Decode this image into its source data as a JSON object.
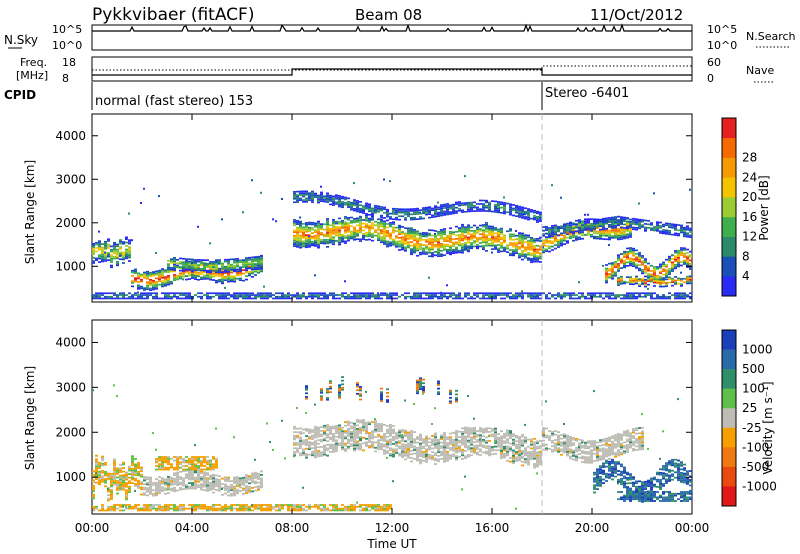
{
  "header": {
    "radar": "Pykkvibaer (fitACF)",
    "beam": "Beam 08",
    "date": "11/Oct/2012"
  },
  "strips": {
    "nsky": {
      "label": "N.Sky",
      "ticks_left": [
        "10^5",
        "10^0"
      ],
      "ticks_right": [
        "10^5",
        "10^0"
      ],
      "right_label": "N.Search"
    },
    "freq": {
      "label_line1": "Freq.",
      "label_line2": "[MHz]",
      "ticks_left": [
        "18",
        "8"
      ],
      "ticks_right": [
        "60",
        "0"
      ],
      "right_label": "Nave"
    },
    "cpid": {
      "label": "CPID",
      "segments": [
        {
          "text": "normal (fast stereo) 153",
          "start_hour": 0
        },
        {
          "text": "Stereo -6401",
          "start_hour": 18
        }
      ],
      "switch_hour": 18
    }
  },
  "chart_data": [
    {
      "type": "heatmap",
      "name": "power",
      "ylabel": "Slant Range [km]",
      "xlim_hours": [
        0,
        24
      ],
      "ylim_km": [
        180,
        4500
      ],
      "yticks": [
        1000,
        2000,
        3000,
        4000
      ],
      "colorbar": {
        "label": "Power [dB]",
        "ticks": [
          "4",
          "8",
          "12",
          "16",
          "20",
          "24",
          "28"
        ],
        "colors": [
          "#2a2af5",
          "#1b4fb8",
          "#2a8a6a",
          "#3fae4e",
          "#9acd32",
          "#f5c400",
          "#f59a00",
          "#f56a00",
          "#e42020"
        ]
      }
    },
    {
      "type": "heatmap",
      "name": "velocity",
      "ylabel": "Slant Range [km]",
      "xlabel": "Time UT",
      "xlim_hours": [
        0,
        24
      ],
      "ylim_km": [
        180,
        4500
      ],
      "yticks": [
        1000,
        2000,
        3000,
        4000
      ],
      "xticks": [
        "00:00",
        "04:00",
        "08:00",
        "12:00",
        "16:00",
        "20:00",
        "00:00"
      ],
      "colorbar": {
        "label": "Velocity [m s⁻¹]",
        "ticks": [
          "1000",
          "500",
          "100",
          "25",
          "-25",
          "-100",
          "-500",
          "-1000"
        ],
        "colors": [
          "#1b3fb8",
          "#2a6aa8",
          "#2f8f6a",
          "#5ec04a",
          "#bdbdb5",
          "#f5a000",
          "#f07a10",
          "#e84a10",
          "#e01818"
        ]
      }
    }
  ]
}
